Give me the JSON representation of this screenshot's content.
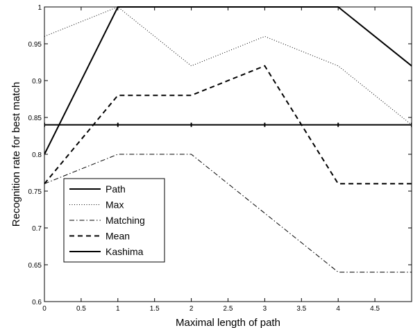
{
  "chart_data": {
    "type": "line",
    "title": "",
    "xlabel": "Maximal length of path",
    "ylabel": "Recognition rate for best match",
    "xlim": [
      0,
      5
    ],
    "ylim": [
      0.6,
      1.0
    ],
    "x_ticks": [
      "0",
      "0.5",
      "1",
      "1.5",
      "2",
      "2.5",
      "3",
      "3.5",
      "4",
      "4.5"
    ],
    "y_ticks": [
      "0.6",
      "0.65",
      "0.7",
      "0.75",
      "0.8",
      "0.85",
      "0.9",
      "0.95",
      "1"
    ],
    "grid": false,
    "legend_position": "bottom-left",
    "x": [
      0,
      1,
      2,
      3,
      4,
      5
    ],
    "series": [
      {
        "name": "Path",
        "style": "solid",
        "values": [
          0.8,
          1.0,
          1.0,
          1.0,
          1.0,
          0.92
        ]
      },
      {
        "name": "Max",
        "style": "dotted",
        "values": [
          0.96,
          1.0,
          0.92,
          0.96,
          0.92,
          0.84
        ]
      },
      {
        "name": "Matching",
        "style": "dashdot",
        "values": [
          0.76,
          0.8,
          0.8,
          0.72,
          0.64,
          0.64
        ]
      },
      {
        "name": "Mean",
        "style": "dashed",
        "values": [
          0.76,
          0.88,
          0.88,
          0.92,
          0.76,
          0.76
        ]
      },
      {
        "name": "Kashima",
        "style": "solid-markers",
        "values": [
          0.84,
          0.84,
          0.84,
          0.84,
          0.84,
          0.84
        ]
      }
    ]
  }
}
